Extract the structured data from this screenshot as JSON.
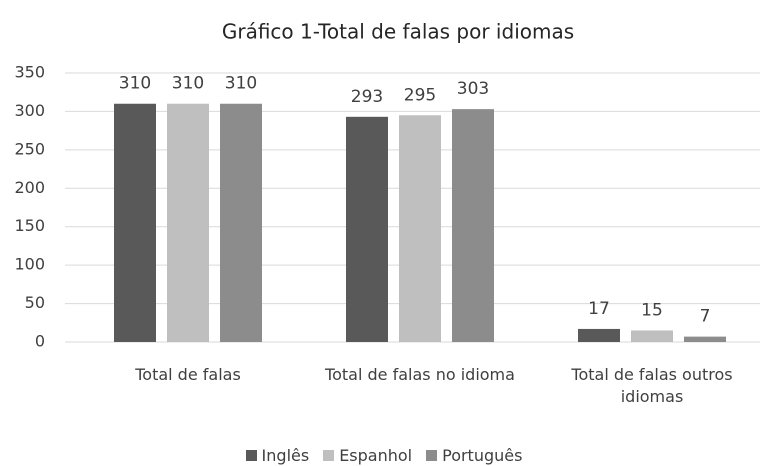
{
  "chart_data": {
    "type": "bar",
    "title": "Gráfico 1-Total de falas por idiomas",
    "categories": [
      "Total de falas",
      "Total de falas no idioma",
      "Total de falas outros idiomas"
    ],
    "series": [
      {
        "name": "Inglês",
        "color": "#595959",
        "values": [
          310,
          293,
          17
        ]
      },
      {
        "name": "Espanhol",
        "color": "#bfbfbf",
        "values": [
          310,
          295,
          15
        ]
      },
      {
        "name": "Português",
        "color": "#8c8c8c",
        "values": [
          310,
          303,
          7
        ]
      }
    ],
    "ylim": [
      0,
      350
    ],
    "yticks": [
      0,
      50,
      100,
      150,
      200,
      250,
      300,
      350
    ],
    "grid": true,
    "legend": "bottom"
  }
}
